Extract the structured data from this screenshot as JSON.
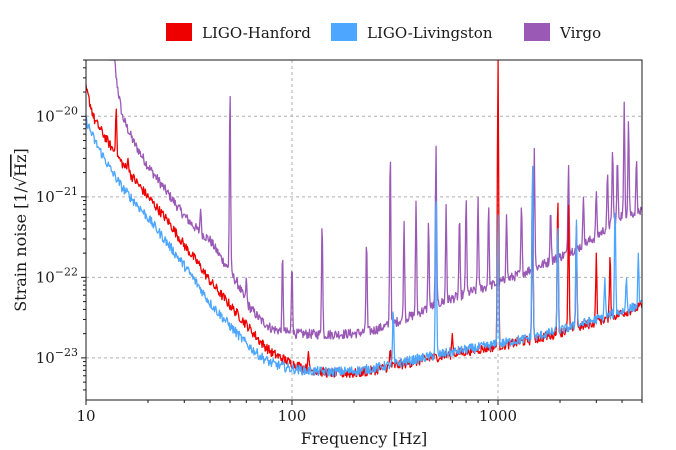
{
  "chart_data": {
    "type": "line",
    "title": "",
    "xlabel": "Frequency [Hz]",
    "ylabel_prefix": "Strain noise [1/",
    "ylabel_radicand": "Hz",
    "ylabel_suffix": "]",
    "x_scale": "log",
    "y_scale": "log",
    "xlim": [
      10,
      5000
    ],
    "ylim": [
      3e-24,
      5e-20
    ],
    "x_ticks": [
      {
        "value": 10,
        "label": "10"
      },
      {
        "value": 100,
        "label": "100"
      },
      {
        "value": 1000,
        "label": "1000"
      }
    ],
    "y_ticks": [
      {
        "value": 1e-23,
        "base": "10",
        "exp": "−23"
      },
      {
        "value": 1e-22,
        "base": "10",
        "exp": "−22"
      },
      {
        "value": 1e-21,
        "base": "10",
        "exp": "−21"
      },
      {
        "value": 1e-20,
        "base": "10",
        "exp": "−20"
      }
    ],
    "grid": true,
    "legend_position": "top",
    "series": [
      {
        "name": "LIGO-Hanford",
        "color": "#ee0000",
        "baseline": [
          [
            10,
            2.2e-20
          ],
          [
            11,
            9e-21
          ],
          [
            13,
            4.5e-21
          ],
          [
            15,
            2.6e-21
          ],
          [
            17,
            1.7e-21
          ],
          [
            20,
            1e-21
          ],
          [
            25,
            5e-22
          ],
          [
            30,
            2.5e-22
          ],
          [
            35,
            1.5e-22
          ],
          [
            40,
            9e-23
          ],
          [
            50,
            4.5e-23
          ],
          [
            60,
            2.6e-23
          ],
          [
            70,
            1.6e-23
          ],
          [
            80,
            1.15e-23
          ],
          [
            100,
            8.5e-24
          ],
          [
            120,
            7.2e-24
          ],
          [
            150,
            6.5e-24
          ],
          [
            200,
            6.4e-24
          ],
          [
            250,
            7e-24
          ],
          [
            300,
            7.8e-24
          ],
          [
            400,
            9e-24
          ],
          [
            500,
            1.02e-23
          ],
          [
            700,
            1.2e-23
          ],
          [
            1000,
            1.4e-23
          ],
          [
            1500,
            1.7e-23
          ],
          [
            2000,
            2.05e-23
          ],
          [
            3000,
            2.8e-23
          ],
          [
            4000,
            3.6e-23
          ],
          [
            5000,
            4.4e-23
          ]
        ],
        "peaks": [
          [
            14,
            1.3e-20
          ],
          [
            16,
            3e-21
          ],
          [
            36,
            6e-23
          ],
          [
            40,
            4.5e-23
          ],
          [
            50,
            3.5e-23
          ],
          [
            60,
            2e-23
          ],
          [
            120,
            1.2e-23
          ],
          [
            300,
            1.3e-23
          ],
          [
            600,
            2e-23
          ],
          [
            1000,
            1.1e-19
          ],
          [
            1470,
            1.5e-21
          ],
          [
            1950,
            1.1e-21
          ],
          [
            2200,
            8e-22
          ],
          [
            2400,
            5e-22
          ],
          [
            3000,
            2e-22
          ],
          [
            3500,
            2e-22
          ]
        ]
      },
      {
        "name": "LIGO-Livingston",
        "color": "#4da6ff",
        "baseline": [
          [
            10,
            9e-21
          ],
          [
            11,
            5e-21
          ],
          [
            13,
            2.3e-21
          ],
          [
            15,
            1.3e-21
          ],
          [
            17,
            9e-22
          ],
          [
            20,
            5.5e-22
          ],
          [
            25,
            2.6e-22
          ],
          [
            30,
            1.4e-22
          ],
          [
            35,
            8e-23
          ],
          [
            40,
            4.8e-23
          ],
          [
            50,
            2.5e-23
          ],
          [
            60,
            1.5e-23
          ],
          [
            70,
            1.05e-23
          ],
          [
            80,
            8.5e-24
          ],
          [
            100,
            7.3e-24
          ],
          [
            120,
            6.9e-24
          ],
          [
            150,
            6.7e-24
          ],
          [
            200,
            6.9e-24
          ],
          [
            250,
            7.4e-24
          ],
          [
            300,
            8.2e-24
          ],
          [
            400,
            9.6e-24
          ],
          [
            500,
            1.08e-23
          ],
          [
            700,
            1.27e-23
          ],
          [
            1000,
            1.48e-23
          ],
          [
            1500,
            1.82e-23
          ],
          [
            2000,
            2.2e-23
          ],
          [
            3000,
            3e-23
          ],
          [
            4000,
            3.8e-23
          ],
          [
            5000,
            4.6e-23
          ]
        ],
        "peaks": [
          [
            33,
            4e-23
          ],
          [
            60,
            1.5e-23
          ],
          [
            310,
            4e-23
          ],
          [
            500,
            1.5e-21
          ],
          [
            1000,
            6e-22
          ],
          [
            1470,
            3e-21
          ],
          [
            1950,
            5e-22
          ],
          [
            2400,
            6e-22
          ],
          [
            3300,
            1e-22
          ],
          [
            3700,
            8e-22
          ],
          [
            4200,
            1e-22
          ],
          [
            4800,
            2e-22
          ]
        ]
      },
      {
        "name": "Virgo",
        "color": "#9b59b6",
        "baseline": [
          [
            13,
            4e-19
          ],
          [
            14,
            3e-20
          ],
          [
            15,
            1e-20
          ],
          [
            17,
            4.8e-21
          ],
          [
            20,
            2.4e-21
          ],
          [
            25,
            1.1e-21
          ],
          [
            30,
            5.8e-22
          ],
          [
            35,
            3.8e-22
          ],
          [
            40,
            2.9e-22
          ],
          [
            45,
            1.8e-22
          ],
          [
            55,
            8e-23
          ],
          [
            60,
            4.8e-23
          ],
          [
            70,
            3e-23
          ],
          [
            80,
            2.3e-23
          ],
          [
            100,
            2e-23
          ],
          [
            150,
            1.95e-23
          ],
          [
            200,
            2e-23
          ],
          [
            250,
            2.2e-23
          ],
          [
            300,
            2.6e-23
          ],
          [
            400,
            3.5e-23
          ],
          [
            500,
            4.6e-23
          ],
          [
            700,
            6.3e-23
          ],
          [
            1000,
            8.5e-23
          ],
          [
            1500,
            1.3e-22
          ],
          [
            2000,
            1.8e-22
          ],
          [
            2500,
            2.4e-22
          ],
          [
            3000,
            3.2e-22
          ],
          [
            4000,
            6e-22
          ],
          [
            5000,
            6.5e-22
          ]
        ],
        "peaks": [
          [
            36,
            7e-22
          ],
          [
            50,
            2.3e-20
          ],
          [
            60,
            1e-22
          ],
          [
            90,
            2e-22
          ],
          [
            100,
            1.5e-22
          ],
          [
            140,
            5e-22
          ],
          [
            230,
            3e-22
          ],
          [
            300,
            4e-21
          ],
          [
            350,
            5e-22
          ],
          [
            400,
            9e-22
          ],
          [
            460,
            5e-22
          ],
          [
            500,
            4.5e-21
          ],
          [
            560,
            8e-22
          ],
          [
            650,
            6e-22
          ],
          [
            700,
            1e-21
          ],
          [
            800,
            1e-21
          ],
          [
            900,
            8e-22
          ],
          [
            1100,
            6e-22
          ],
          [
            1300,
            8e-22
          ],
          [
            1500,
            4e-21
          ],
          [
            1800,
            7e-22
          ],
          [
            2200,
            2.5e-21
          ],
          [
            2600,
            1e-21
          ],
          [
            3000,
            1.2e-21
          ],
          [
            3400,
            2e-21
          ],
          [
            3600,
            4e-21
          ],
          [
            3800,
            3e-21
          ],
          [
            4100,
            1.5e-20
          ],
          [
            4300,
            9e-21
          ],
          [
            4700,
            3e-21
          ]
        ]
      }
    ]
  }
}
